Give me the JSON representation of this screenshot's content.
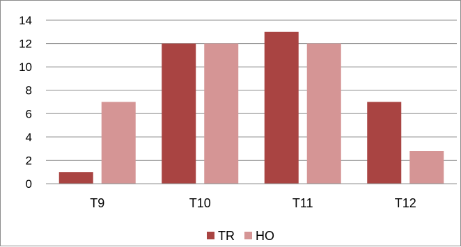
{
  "chart_data": {
    "type": "bar",
    "categories": [
      "T9",
      "T10",
      "T11",
      "T12"
    ],
    "series": [
      {
        "name": "TR",
        "values": [
          1,
          12,
          13,
          7
        ],
        "color": "#a94442"
      },
      {
        "name": "HO",
        "values": [
          7,
          12,
          12,
          2.8
        ],
        "color": "#d59595"
      }
    ],
    "title": "",
    "xlabel": "",
    "ylabel": "",
    "ylim": [
      0,
      14
    ],
    "yticks": [
      "0",
      "2",
      "4",
      "6",
      "8",
      "10",
      "12",
      "14"
    ],
    "grid": true,
    "legend_position": "bottom"
  }
}
